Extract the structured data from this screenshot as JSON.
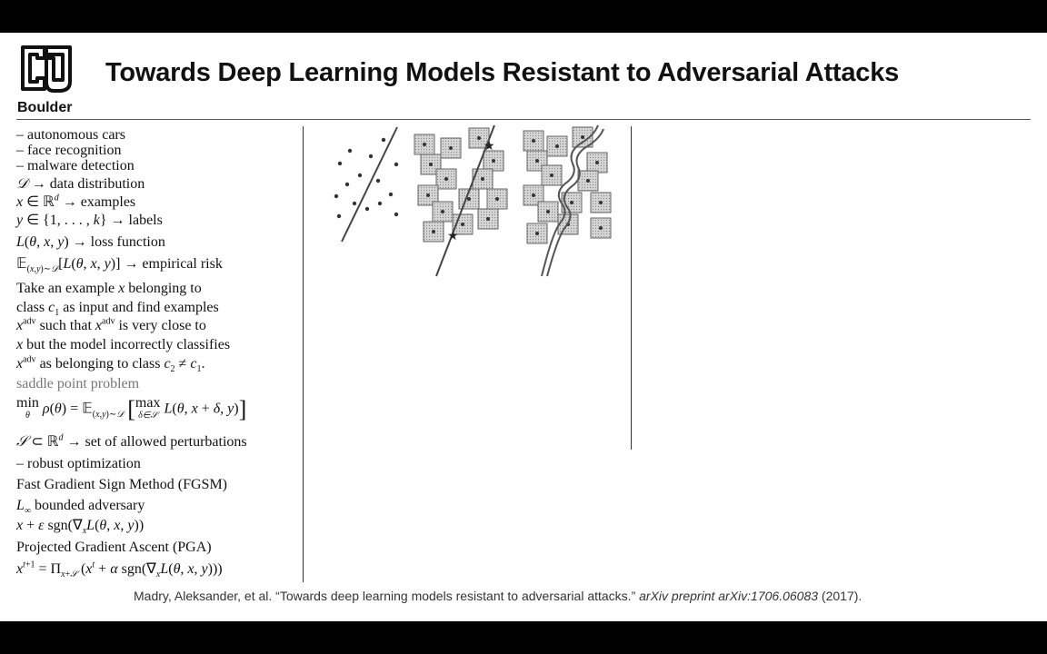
{
  "logo": {
    "text": "Boulder",
    "icon": "cu-logo-icon"
  },
  "title": "Towards Deep Learning Models Resistant to Adversarial Attacks",
  "notes": {
    "app1": "– autonomous cars",
    "app2": "– face recognition",
    "app3": "– malware detection",
    "dist_text": "→ data distribution",
    "examples_text": "→ examples",
    "labels_text": "→ labels",
    "loss_text": "→ loss function",
    "risk_text": "→ empirical risk",
    "para1": "Take an example",
    "para1b": "belonging to",
    "para2a": "class",
    "para2b": "as input and find examples",
    "para3a": "such that",
    "para3b": "is very close to",
    "para4": "but the model incorrectly classifies",
    "para5": "as belonging to class",
    "saddle": "saddle point problem",
    "perturb_text": "→ set of allowed perturbations",
    "robust": "– robust optimization",
    "fgsm": "Fast Gradient Sign Method (FGSM)",
    "bounded": "bounded adversary",
    "pga": "Projected Gradient Ascent (PGA)"
  },
  "citation": {
    "authors": "Madry, Aleksander, et al. “Towards deep learning models resistant to adversarial attacks.”",
    "venue": "arXiv preprint arXiv:1706.06083",
    "year": "(2017)."
  }
}
